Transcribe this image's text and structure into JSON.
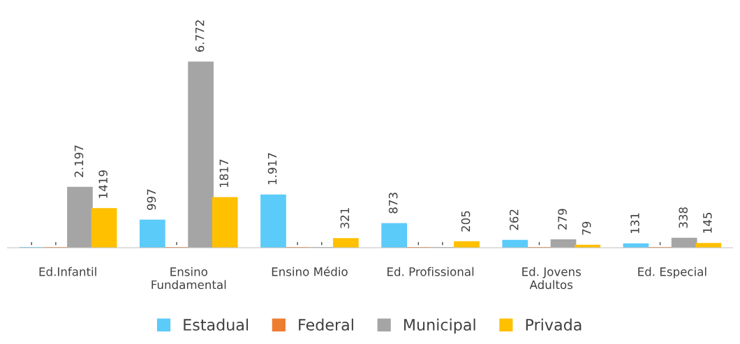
{
  "chart_data": {
    "type": "bar",
    "categories": [
      "Ed.Infantil",
      "Ensino\nFundamental",
      "Ensino Médio",
      "Ed. Profissional",
      "Ed. Jovens\nAdultos",
      "Ed. Especial"
    ],
    "series": [
      {
        "name": "Estadual",
        "color": "#5bcbfa",
        "values": [
          0,
          997,
          1917,
          873,
          262,
          131
        ],
        "value_labels": [
          "-",
          "997",
          "1.917",
          "873",
          "262",
          "131"
        ]
      },
      {
        "name": "Federal",
        "color": "#ed7d31",
        "values": [
          0,
          0,
          0,
          0,
          0,
          0
        ],
        "value_labels": [
          "-",
          "-",
          "-",
          "-",
          "-",
          "-"
        ]
      },
      {
        "name": "Municipal",
        "color": "#a5a5a5",
        "values": [
          2197,
          6772,
          0,
          0,
          279,
          338
        ],
        "value_labels": [
          "2.197",
          "6.772",
          "-",
          "-",
          "279",
          "338"
        ]
      },
      {
        "name": "Privada",
        "color": "#ffc000",
        "values": [
          1419,
          1817,
          321,
          205,
          79,
          145
        ],
        "value_labels": [
          "1419",
          "1817",
          "321",
          "205",
          "79",
          "145"
        ]
      }
    ],
    "legend": "bottom",
    "grid": false
  }
}
